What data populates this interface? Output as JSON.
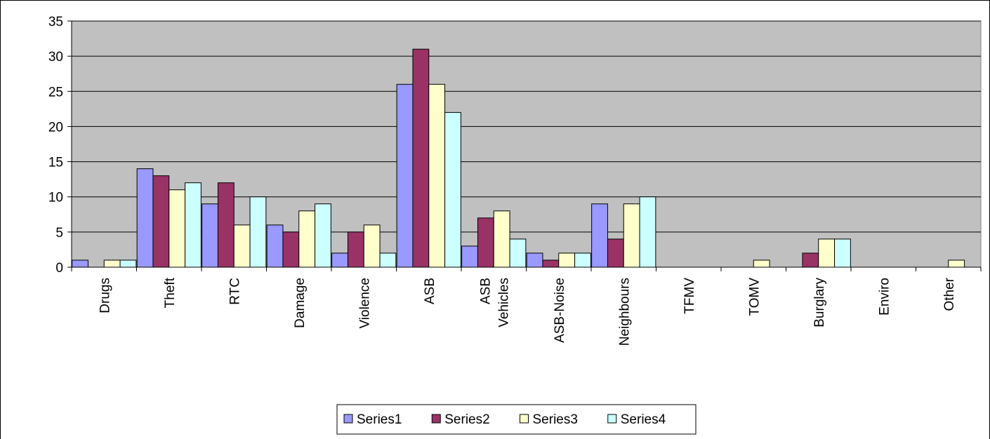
{
  "chart_data": {
    "type": "bar",
    "title": "",
    "xlabel": "",
    "ylabel": "",
    "ylim": [
      0,
      35
    ],
    "yticks": [
      0,
      5,
      10,
      15,
      20,
      25,
      30,
      35
    ],
    "grid": true,
    "legend_position": "bottom",
    "plot_background": "#c0c0c0",
    "categories": [
      [
        "Drugs"
      ],
      [
        "Theft"
      ],
      [
        "RTC"
      ],
      [
        "Damage"
      ],
      [
        "Violence"
      ],
      [
        "ASB"
      ],
      [
        "ASB",
        "Vehicles"
      ],
      [
        "ASB-Noise"
      ],
      [
        "Neighbours"
      ],
      [
        "TFMV"
      ],
      [
        "TOMV"
      ],
      [
        "Burglary"
      ],
      [
        "Enviro"
      ],
      [
        "Other"
      ]
    ],
    "series": [
      {
        "name": "Series1",
        "color": "#9999ff",
        "values": [
          1,
          14,
          9,
          6,
          2,
          26,
          3,
          2,
          9,
          0,
          0,
          0,
          0,
          0
        ]
      },
      {
        "name": "Series2",
        "color": "#993366",
        "values": [
          0,
          13,
          12,
          5,
          5,
          31,
          7,
          1,
          4,
          0,
          0,
          2,
          0,
          0
        ]
      },
      {
        "name": "Series3",
        "color": "#ffffcc",
        "values": [
          1,
          11,
          6,
          8,
          6,
          26,
          8,
          2,
          9,
          0,
          1,
          4,
          0,
          1
        ]
      },
      {
        "name": "Series4",
        "color": "#ccffff",
        "values": [
          1,
          12,
          10,
          9,
          2,
          22,
          4,
          2,
          10,
          0,
          0,
          4,
          0,
          0
        ]
      }
    ]
  }
}
